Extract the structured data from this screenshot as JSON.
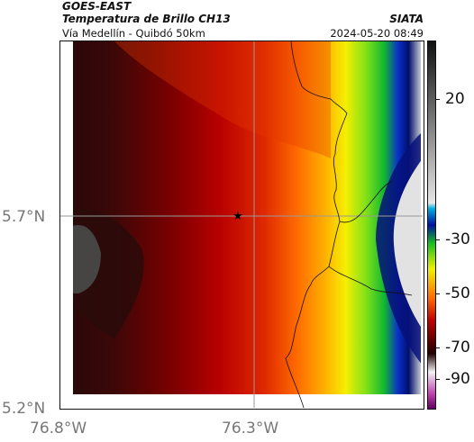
{
  "header": {
    "satellite": "GOES-EAST",
    "product": "Temperatura de Brillo CH13",
    "brand": "SIATA",
    "route": "Vía Medellín - Quibdó 50km",
    "datetime": "2024-05-20 08:49"
  },
  "axes": {
    "y_ticks": [
      "5.7°N",
      "5.2°N"
    ],
    "x_ticks": [
      "76.8°W",
      "76.3°W"
    ]
  },
  "colorbar": {
    "ticks": [
      "20",
      "-30",
      "-50",
      "-70",
      "-90"
    ]
  },
  "marker": {
    "symbol": "★",
    "name": "location-star"
  },
  "colors": {
    "frame": "#111111",
    "gridline": "#9a9a9a",
    "warm_black": "#1a0505",
    "red": "#c10000",
    "orange": "#ff7a00",
    "yellow": "#f6f000",
    "green": "#2fd22a",
    "blue": "#0015b0",
    "cold_white": "#e8e8e8"
  }
}
